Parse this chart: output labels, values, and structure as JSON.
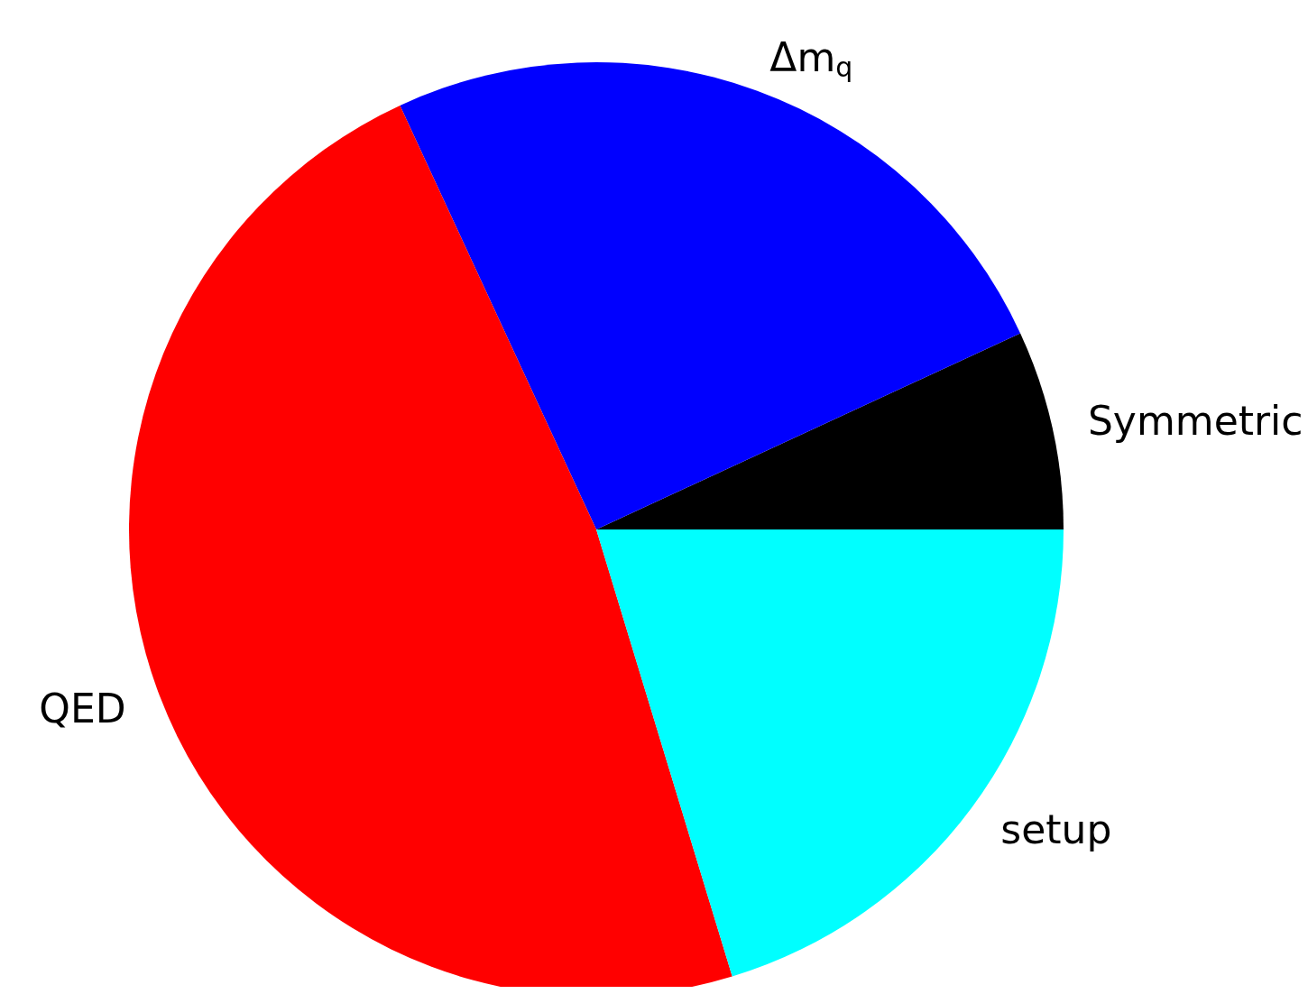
{
  "chart_data": {
    "type": "pie",
    "categories": [
      "Symmetric",
      "Δm$_{q}$",
      "QED",
      "setup"
    ],
    "values": [
      6.9,
      25.0,
      47.8,
      20.3
    ],
    "colors": [
      "#000000",
      "#0000ff",
      "#ff0000",
      "#00ffff"
    ]
  }
}
